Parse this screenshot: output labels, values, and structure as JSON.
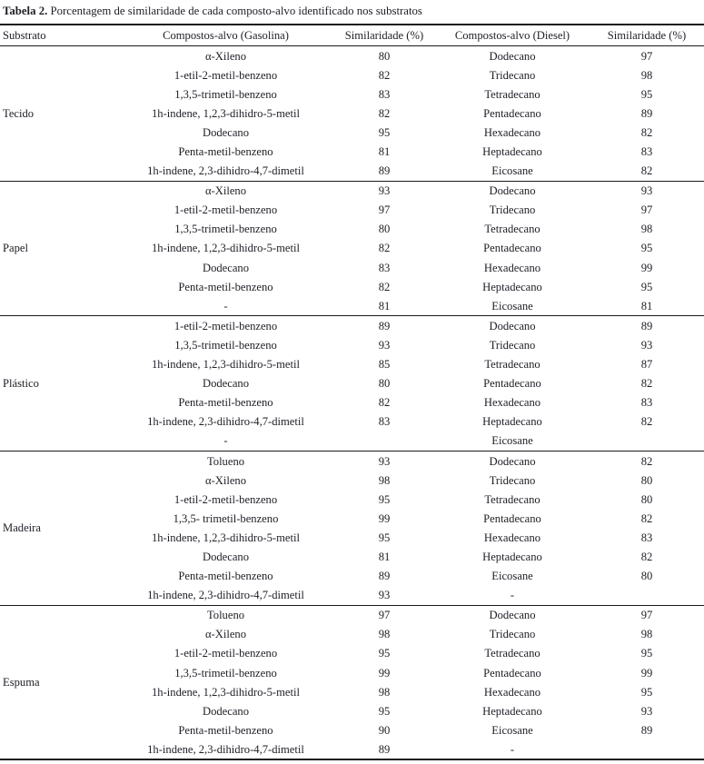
{
  "title": {
    "label": "Tabela 2.",
    "text": " Porcentagem de similaridade de cada composto-alvo identificado nos substratos"
  },
  "colors": {
    "text": "#1e1e26",
    "rule": "#1a1a1a",
    "background": "#ffffff"
  },
  "table": {
    "headers": {
      "substrate": "Substrato",
      "compound_gasoline": "Compostos-alvo (Gasolina)",
      "similarity_gasoline": "Similaridade (%)",
      "compound_diesel": "Compostos-alvo (Diesel)",
      "similarity_diesel": "Similaridade (%)"
    },
    "groups": [
      {
        "substrate": "Tecido",
        "rows": [
          [
            "α-Xileno",
            "80",
            "Dodecano",
            "97"
          ],
          [
            "1-etil-2-metil-benzeno",
            "82",
            "Tridecano",
            "98"
          ],
          [
            "1,3,5-trimetil-benzeno",
            "83",
            "Tetradecano",
            "95"
          ],
          [
            "1h-indene, 1,2,3-dihidro-5-metil",
            "82",
            "Pentadecano",
            "89"
          ],
          [
            "Dodecano",
            "95",
            "Hexadecano",
            "82"
          ],
          [
            "Penta-metil-benzeno",
            "81",
            "Heptadecano",
            "83"
          ],
          [
            "1h-indene, 2,3-dihidro-4,7-dimetil",
            "89",
            "Eicosane",
            "82"
          ]
        ]
      },
      {
        "substrate": "Papel",
        "rows": [
          [
            "α-Xileno",
            "93",
            "Dodecano",
            "93"
          ],
          [
            "1-etil-2-metil-benzeno",
            "97",
            "Tridecano",
            "97"
          ],
          [
            "1,3,5-trimetil-benzeno",
            "80",
            "Tetradecano",
            "98"
          ],
          [
            "1h-indene, 1,2,3-dihidro-5-metil",
            "82",
            "Pentadecano",
            "95"
          ],
          [
            "Dodecano",
            "83",
            "Hexadecano",
            "99"
          ],
          [
            "Penta-metil-benzeno",
            "82",
            "Heptadecano",
            "95"
          ],
          [
            "-",
            "81",
            "Eicosane",
            "81"
          ]
        ]
      },
      {
        "substrate": "Plástico",
        "rows": [
          [
            "1-etil-2-metil-benzeno",
            "89",
            "Dodecano",
            "89"
          ],
          [
            "1,3,5-trimetil-benzeno",
            "93",
            "Tridecano",
            "93"
          ],
          [
            "1h-indene, 1,2,3-dihidro-5-metil",
            "85",
            "Tetradecano",
            "87"
          ],
          [
            "Dodecano",
            "80",
            "Pentadecano",
            "82"
          ],
          [
            "Penta-metil-benzeno",
            "82",
            "Hexadecano",
            "83"
          ],
          [
            "1h-indene, 2,3-dihidro-4,7-dimetil",
            "83",
            "Heptadecano",
            "82"
          ],
          [
            "-",
            "",
            "Eicosane",
            ""
          ]
        ]
      },
      {
        "substrate": "Madeira",
        "rows": [
          [
            "Tolueno",
            "93",
            "Dodecano",
            "82"
          ],
          [
            "α-Xileno",
            "98",
            "Tridecano",
            "80"
          ],
          [
            "1-etil-2-metil-benzeno",
            "95",
            "Tetradecano",
            "80"
          ],
          [
            "1,3,5- trimetil-benzeno",
            "99",
            "Pentadecano",
            "82"
          ],
          [
            "1h-indene, 1,2,3-dihidro-5-metil",
            "95",
            "Hexadecano",
            "83"
          ],
          [
            "Dodecano",
            "81",
            "Heptadecano",
            "82"
          ],
          [
            "Penta-metil-benzeno",
            "89",
            "Eicosane",
            "80"
          ],
          [
            "1h-indene, 2,3-dihidro-4,7-dimetil",
            "93",
            "-",
            ""
          ]
        ]
      },
      {
        "substrate": "Espuma",
        "rows": [
          [
            "Tolueno",
            "97",
            "Dodecano",
            "97"
          ],
          [
            "α-Xileno",
            "98",
            "Tridecano",
            "98"
          ],
          [
            "1-etil-2-metil-benzeno",
            "95",
            "Tetradecano",
            "95"
          ],
          [
            "1,3,5-trimetil-benzeno",
            "99",
            "Pentadecano",
            "99"
          ],
          [
            "1h-indene, 1,2,3-dihidro-5-metil",
            "98",
            "Hexadecano",
            "95"
          ],
          [
            "Dodecano",
            "95",
            "Heptadecano",
            "93"
          ],
          [
            "Penta-metil-benzeno",
            "90",
            "Eicosane",
            "89"
          ],
          [
            "1h-indene, 2,3-dihidro-4,7-dimetil",
            "89",
            "-",
            ""
          ]
        ]
      }
    ]
  }
}
